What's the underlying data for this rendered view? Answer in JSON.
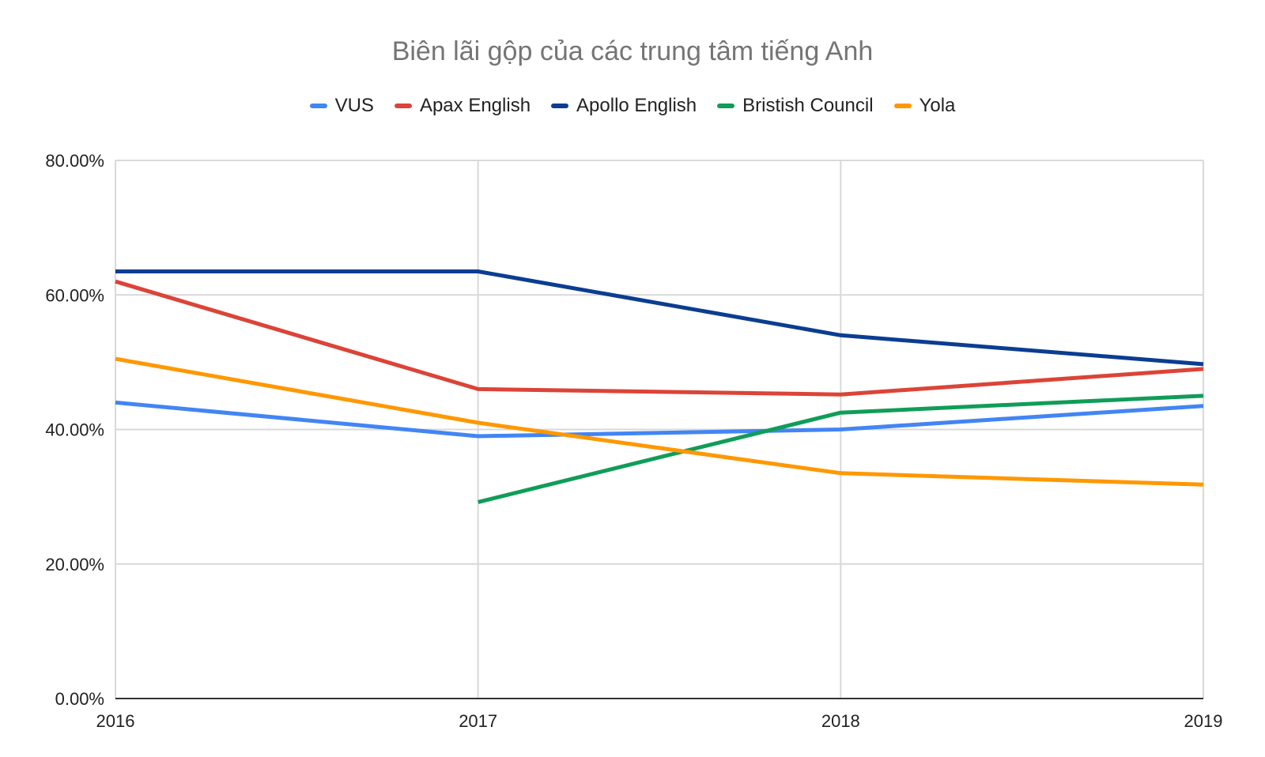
{
  "chart_data": {
    "type": "line",
    "title": "Biên lãi gộp của các trung tâm tiếng Anh",
    "xlabel": "",
    "ylabel": "",
    "x": [
      "2016",
      "2017",
      "2018",
      "2019"
    ],
    "ylim": [
      0,
      80
    ],
    "y_ticks": [
      0,
      20,
      40,
      60,
      80
    ],
    "y_tick_labels": [
      "0.00%",
      "20.00%",
      "40.00%",
      "60.00%",
      "80.00%"
    ],
    "grid": true,
    "legend_position": "top",
    "series": [
      {
        "name": "VUS",
        "color": "#4285f4",
        "values": [
          44.0,
          39.0,
          40.0,
          43.5
        ]
      },
      {
        "name": "Apax English",
        "color": "#db4437",
        "values": [
          62.0,
          46.0,
          45.2,
          49.0
        ]
      },
      {
        "name": "Apollo English",
        "color": "#0b3d91",
        "values": [
          63.5,
          63.5,
          54.0,
          49.7
        ]
      },
      {
        "name": "Bristish Council",
        "color": "#0f9d58",
        "values": [
          null,
          29.2,
          42.5,
          45.0
        ]
      },
      {
        "name": "Yola",
        "color": "#ff9800",
        "values": [
          50.5,
          41.0,
          33.5,
          31.8
        ]
      }
    ]
  }
}
